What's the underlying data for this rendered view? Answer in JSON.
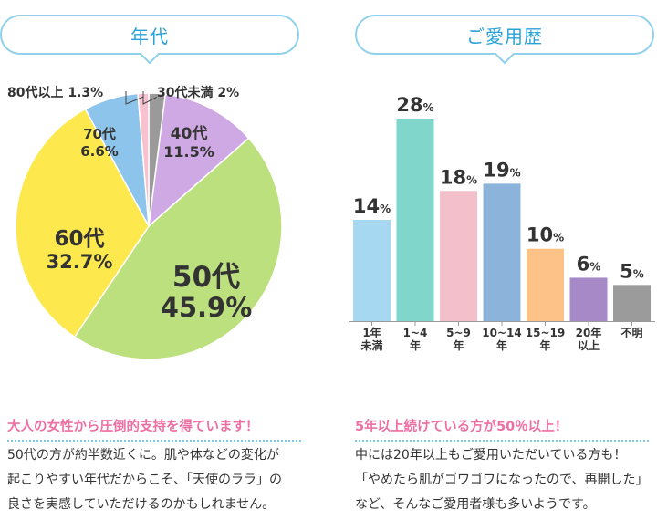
{
  "left": {
    "title": "年代",
    "heading": "大人の女性から圧倒的支持を得ています！",
    "body": [
      "50代の方が約半数近くに。肌や体などの変化が",
      "起こりやすい年代だからこそ、「天使のララ」の",
      "良さを実感していただけるのかもしれません。"
    ]
  },
  "right": {
    "title": "ご愛用歴",
    "heading": "5年以上続けている方が50％以上！",
    "body": [
      "中には20年以上もご愛用いただいている方も！",
      "「やめたら肌がゴワゴワになったので、再開した」",
      "など、そんなご愛用者様も多いようです。"
    ]
  },
  "chart_data": [
    {
      "type": "pie",
      "title": "年代",
      "slices": [
        {
          "name": "30代未満",
          "value": 2,
          "label": "2%",
          "color": "#9a9a9a"
        },
        {
          "name": "40代",
          "value": 11.5,
          "label": "11.5%",
          "color": "#cfa9e3"
        },
        {
          "name": "50代",
          "value": 45.9,
          "label": "45.9%",
          "color": "#bde07e"
        },
        {
          "name": "60代",
          "value": 32.7,
          "label": "32.7%",
          "color": "#fde84d"
        },
        {
          "name": "70代",
          "value": 6.6,
          "label": "6.6%",
          "color": "#8cc4ec"
        },
        {
          "name": "80代以上",
          "value": 1.3,
          "label": "1.3%",
          "color": "#f7c1cf"
        }
      ]
    },
    {
      "type": "bar",
      "title": "ご愛用歴",
      "categories": [
        [
          "1年",
          "未満"
        ],
        [
          "1~4",
          "年"
        ],
        [
          "5~9",
          "年"
        ],
        [
          "10~14",
          "年"
        ],
        [
          "15~19",
          "年"
        ],
        [
          "20年",
          "以上"
        ],
        [
          "不明"
        ]
      ],
      "values": [
        14,
        28,
        18,
        19,
        10,
        6,
        5
      ],
      "unit": "%",
      "colors": [
        "#a6d8f2",
        "#80d6cb",
        "#f3bfca",
        "#8cb4da",
        "#fdc287",
        "#a789c7",
        "#9b9b9b"
      ],
      "ylim": [
        0,
        28
      ]
    }
  ]
}
